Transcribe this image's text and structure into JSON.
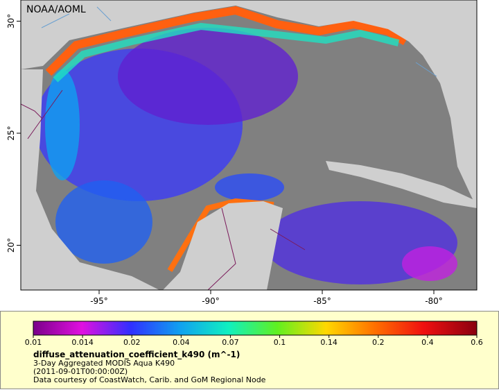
{
  "map": {
    "credit": "NOAA/AOML",
    "latitude_ticks": [
      {
        "value": 30,
        "label": "30°"
      },
      {
        "value": 25,
        "label": "25°"
      },
      {
        "value": 20,
        "label": "20°"
      }
    ],
    "longitude_ticks": [
      {
        "value": -95,
        "label": "-95°"
      },
      {
        "value": -90,
        "label": "-90°"
      },
      {
        "value": -85,
        "label": "-85°"
      },
      {
        "value": -80,
        "label": "-80°"
      }
    ]
  },
  "legend": {
    "colorbar_ticks": [
      "0.01",
      "0.014",
      "0.02",
      "0.04",
      "0.07",
      "0.1",
      "0.14",
      "0.2",
      "0.4",
      "0.6"
    ],
    "variable": "diffuse_attenuation_coefficient_k490 (m^-1)",
    "dataset": "3-Day Aggregated MODIS Aqua K490",
    "time": "(2011-09-01T00:00:00Z)",
    "source": "Data courtesy of CoastWatch, Carib. and GoM Regional Node"
  }
}
